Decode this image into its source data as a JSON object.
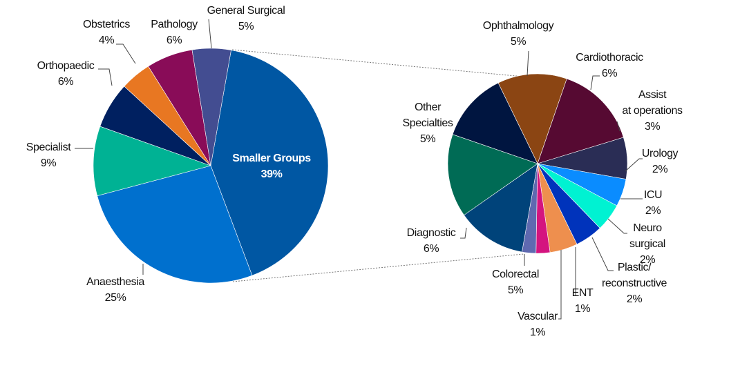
{
  "chart_data": [
    {
      "type": "pie",
      "title": "",
      "slices": [
        {
          "name": "Smaller Groups",
          "value": 39,
          "label": "39%",
          "color": "#0057A3"
        },
        {
          "name": "Anaesthesia",
          "value": 25,
          "label": "25%",
          "color": "#0070CE"
        },
        {
          "name": "Specialist",
          "value": 9,
          "label": "9%",
          "color": "#00B294"
        },
        {
          "name": "Orthopaedic",
          "value": 6,
          "label": "6%",
          "color": "#002060"
        },
        {
          "name": "Obstetrics",
          "value": 4,
          "label": "4%",
          "color": "#E87722"
        },
        {
          "name": "Pathology",
          "value": 6,
          "label": "6%",
          "color": "#890C58"
        },
        {
          "name": "General Surgical",
          "value": 5,
          "label": "5%",
          "color": "#434D91"
        }
      ]
    },
    {
      "type": "pie",
      "title": "",
      "breakdown_of": "Smaller Groups",
      "slices": [
        {
          "name": "Ophthalmology",
          "value": 5,
          "label": "5%",
          "color": "#8B4513"
        },
        {
          "name": "Cardiothoracic",
          "value": 6,
          "label": "6%",
          "color": "#560A32"
        },
        {
          "name": "Assist at operations",
          "value": 3,
          "label": "3%",
          "color": "#2A2D55"
        },
        {
          "name": "Urology",
          "value": 2,
          "label": "2%",
          "color": "#0A8CFF"
        },
        {
          "name": "ICU",
          "value": 2,
          "label": "2%",
          "color": "#00F2D2"
        },
        {
          "name": "Neuro surgical",
          "value": 2,
          "label": "2%",
          "color": "#0033BB"
        },
        {
          "name": "Plastic/ reconstructive",
          "value": 2,
          "label": "2%",
          "color": "#EE8F4E"
        },
        {
          "name": "ENT",
          "value": 1,
          "label": "1%",
          "color": "#D4147F"
        },
        {
          "name": "Vascular",
          "value": 1,
          "label": "1%",
          "color": "#5F69B0"
        },
        {
          "name": "Colorectal",
          "value": 5,
          "label": "5%",
          "color": "#00437A"
        },
        {
          "name": "Diagnostic",
          "value": 6,
          "label": "6%",
          "color": "#006B55"
        },
        {
          "name": "Other Specialties",
          "value": 5,
          "label": "5%",
          "color": "#001540"
        }
      ]
    }
  ]
}
